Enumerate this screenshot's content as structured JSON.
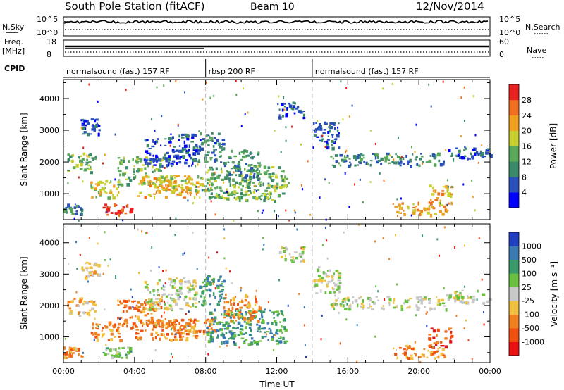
{
  "header": {
    "title": "South Pole Station (fitACF)",
    "beam": "Beam 10",
    "date": "12/Nov/2014"
  },
  "aux_panels": {
    "nsky_label": "N.Sky",
    "nsky_ticks": [
      "10^5",
      "10^0"
    ],
    "nsearch_label": "N.Search",
    "nsearch_ticks": [
      "10^5",
      "10^0"
    ],
    "freq_label_1": "Freq.",
    "freq_label_2": "[MHz]",
    "freq_ticks": [
      "18",
      "8"
    ],
    "nave_label": "Nave",
    "nave_ticks": [
      "60",
      "0"
    ],
    "cpid_label": "CPID"
  },
  "cpid_segments": [
    {
      "label": "normalsound (fast) 157 RF",
      "start_hour": 0,
      "end_hour": 8
    },
    {
      "label": "rbsp 200 RF",
      "start_hour": 8,
      "end_hour": 14
    },
    {
      "label": "normalsound (fast) 157 RF",
      "start_hour": 14,
      "end_hour": 24
    }
  ],
  "chart_data": [
    {
      "type": "heatmap",
      "name": "Power",
      "ylabel": "Slant Range [km]",
      "xlim": [
        0,
        24
      ],
      "ylim": [
        180,
        4600
      ],
      "yticks": [
        1000,
        2000,
        3000,
        4000
      ],
      "colorbar_label": "Power [dB]",
      "colorbar_ticks": [
        "4",
        "8",
        "12",
        "16",
        "20",
        "24",
        "28"
      ],
      "colorbar_colors": [
        "#0000ff",
        "#2850b8",
        "#3a8a6a",
        "#5aa85a",
        "#c8d030",
        "#f0a020",
        "#f07020",
        "#e82020"
      ],
      "echo_regions": [
        {
          "t0": 0.2,
          "t1": 1.8,
          "r0": 1700,
          "r1": 2300,
          "level": 3
        },
        {
          "t0": 1.0,
          "t1": 2.0,
          "r0": 2900,
          "r1": 3400,
          "level": 1
        },
        {
          "t0": 1.5,
          "t1": 3.2,
          "r0": 900,
          "r1": 1500,
          "level": 4
        },
        {
          "t0": 2.2,
          "t1": 3.8,
          "r0": 350,
          "r1": 700,
          "level": 7
        },
        {
          "t0": 3.0,
          "t1": 5.5,
          "r0": 1300,
          "r1": 2200,
          "level": 3
        },
        {
          "t0": 4.0,
          "t1": 7.5,
          "r0": 900,
          "r1": 1600,
          "level": 5
        },
        {
          "t0": 5.5,
          "t1": 8.5,
          "r0": 1100,
          "r1": 1600,
          "level": 4
        },
        {
          "t0": 4.5,
          "t1": 7.5,
          "r0": 1900,
          "r1": 2900,
          "level": 1
        },
        {
          "t0": 7.5,
          "t1": 9.0,
          "r0": 2000,
          "r1": 3000,
          "level": 2
        },
        {
          "t0": 8.0,
          "t1": 12.5,
          "r0": 800,
          "r1": 1900,
          "level": 3
        },
        {
          "t0": 9.0,
          "t1": 11.0,
          "r0": 1500,
          "r1": 2400,
          "level": 2
        },
        {
          "t0": 12.0,
          "t1": 13.5,
          "r0": 3400,
          "r1": 3900,
          "level": 1
        },
        {
          "t0": 14.0,
          "t1": 15.5,
          "r0": 2400,
          "r1": 3300,
          "level": 1
        },
        {
          "t0": 15.0,
          "t1": 21.5,
          "r0": 1900,
          "r1": 2300,
          "level": 2
        },
        {
          "t0": 21.5,
          "t1": 24.0,
          "r0": 2100,
          "r1": 2500,
          "level": 1
        },
        {
          "t0": 18.5,
          "t1": 21.5,
          "r0": 350,
          "r1": 750,
          "level": 5
        },
        {
          "t0": 20.5,
          "t1": 21.8,
          "r0": 700,
          "r1": 1300,
          "level": 5
        },
        {
          "t0": 0.0,
          "t1": 1.0,
          "r0": 350,
          "r1": 700,
          "level": 2
        }
      ]
    },
    {
      "type": "heatmap",
      "name": "Velocity",
      "ylabel": "Slant Range [km]",
      "xlabel": "Time UT",
      "xlim": [
        0,
        24
      ],
      "ylim": [
        180,
        4600
      ],
      "xticks": [
        "00:00",
        "04:00",
        "08:00",
        "12:00",
        "16:00",
        "20:00",
        "00:00"
      ],
      "yticks": [
        1000,
        2000,
        3000,
        4000
      ],
      "colorbar_label": "Velocity [m s⁻¹]",
      "colorbar_ticks": [
        "1000",
        "500",
        "100",
        "25",
        "-25",
        "-100",
        "-500",
        "-1000"
      ],
      "colorbar_colors": [
        "#2040c0",
        "#3a7ab0",
        "#3a9a6a",
        "#6ac040",
        "#c8c8c8",
        "#f0c040",
        "#f08020",
        "#f05010",
        "#e81010"
      ],
      "echo_regions": [
        {
          "t0": 0.2,
          "t1": 1.8,
          "r0": 1700,
          "r1": 2300,
          "level": 5
        },
        {
          "t0": 1.0,
          "t1": 2.0,
          "r0": 2900,
          "r1": 3400,
          "level": 5
        },
        {
          "t0": 1.5,
          "t1": 3.2,
          "r0": 900,
          "r1": 1500,
          "level": 6
        },
        {
          "t0": 2.2,
          "t1": 3.8,
          "r0": 350,
          "r1": 700,
          "level": 3
        },
        {
          "t0": 3.0,
          "t1": 5.5,
          "r0": 1300,
          "r1": 2200,
          "level": 6
        },
        {
          "t0": 4.0,
          "t1": 7.5,
          "r0": 900,
          "r1": 1600,
          "level": 6
        },
        {
          "t0": 5.5,
          "t1": 8.5,
          "r0": 1100,
          "r1": 1600,
          "level": 6
        },
        {
          "t0": 4.5,
          "t1": 7.5,
          "r0": 1900,
          "r1": 2900,
          "level": 4
        },
        {
          "t0": 7.5,
          "t1": 9.0,
          "r0": 2000,
          "r1": 3000,
          "level": 2
        },
        {
          "t0": 8.0,
          "t1": 12.5,
          "r0": 800,
          "r1": 1900,
          "level": 2
        },
        {
          "t0": 9.0,
          "t1": 11.0,
          "r0": 1500,
          "r1": 2400,
          "level": 6
        },
        {
          "t0": 12.0,
          "t1": 13.5,
          "r0": 3400,
          "r1": 3900,
          "level": 4
        },
        {
          "t0": 14.0,
          "t1": 15.5,
          "r0": 2400,
          "r1": 3300,
          "level": 4
        },
        {
          "t0": 15.0,
          "t1": 21.5,
          "r0": 1900,
          "r1": 2300,
          "level": 4
        },
        {
          "t0": 21.5,
          "t1": 24.0,
          "r0": 2100,
          "r1": 2500,
          "level": 4
        },
        {
          "t0": 18.5,
          "t1": 21.5,
          "r0": 350,
          "r1": 750,
          "level": 6
        },
        {
          "t0": 20.5,
          "t1": 21.8,
          "r0": 700,
          "r1": 1300,
          "level": 7
        },
        {
          "t0": 0.0,
          "t1": 1.0,
          "r0": 350,
          "r1": 700,
          "level": 6
        }
      ]
    }
  ]
}
